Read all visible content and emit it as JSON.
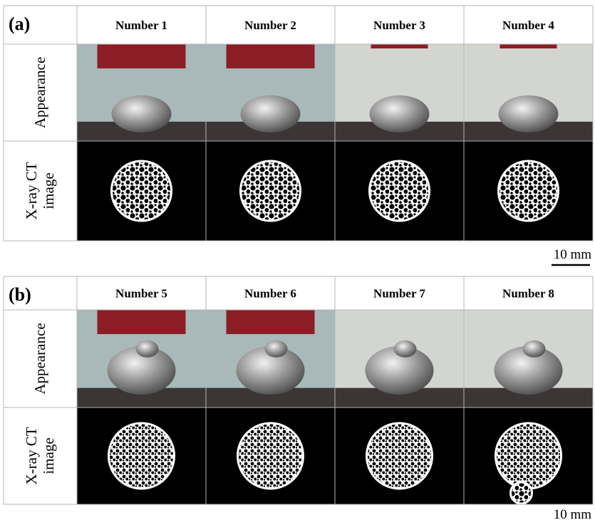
{
  "panels": [
    {
      "label": "(a)",
      "columns": [
        "Number 1",
        "Number 2",
        "Number 3",
        "Number 4"
      ],
      "rows": [
        [
          "Appearance"
        ],
        [
          "X-ray CT",
          "image"
        ]
      ],
      "scale_bar": "10 mm"
    },
    {
      "label": "(b)",
      "columns": [
        "Number 5",
        "Number 6",
        "Number 7",
        "Number 8"
      ],
      "rows": [
        [
          "Appearance"
        ],
        [
          "X-ray CT",
          "image"
        ]
      ],
      "scale_bar": "10 mm"
    }
  ]
}
